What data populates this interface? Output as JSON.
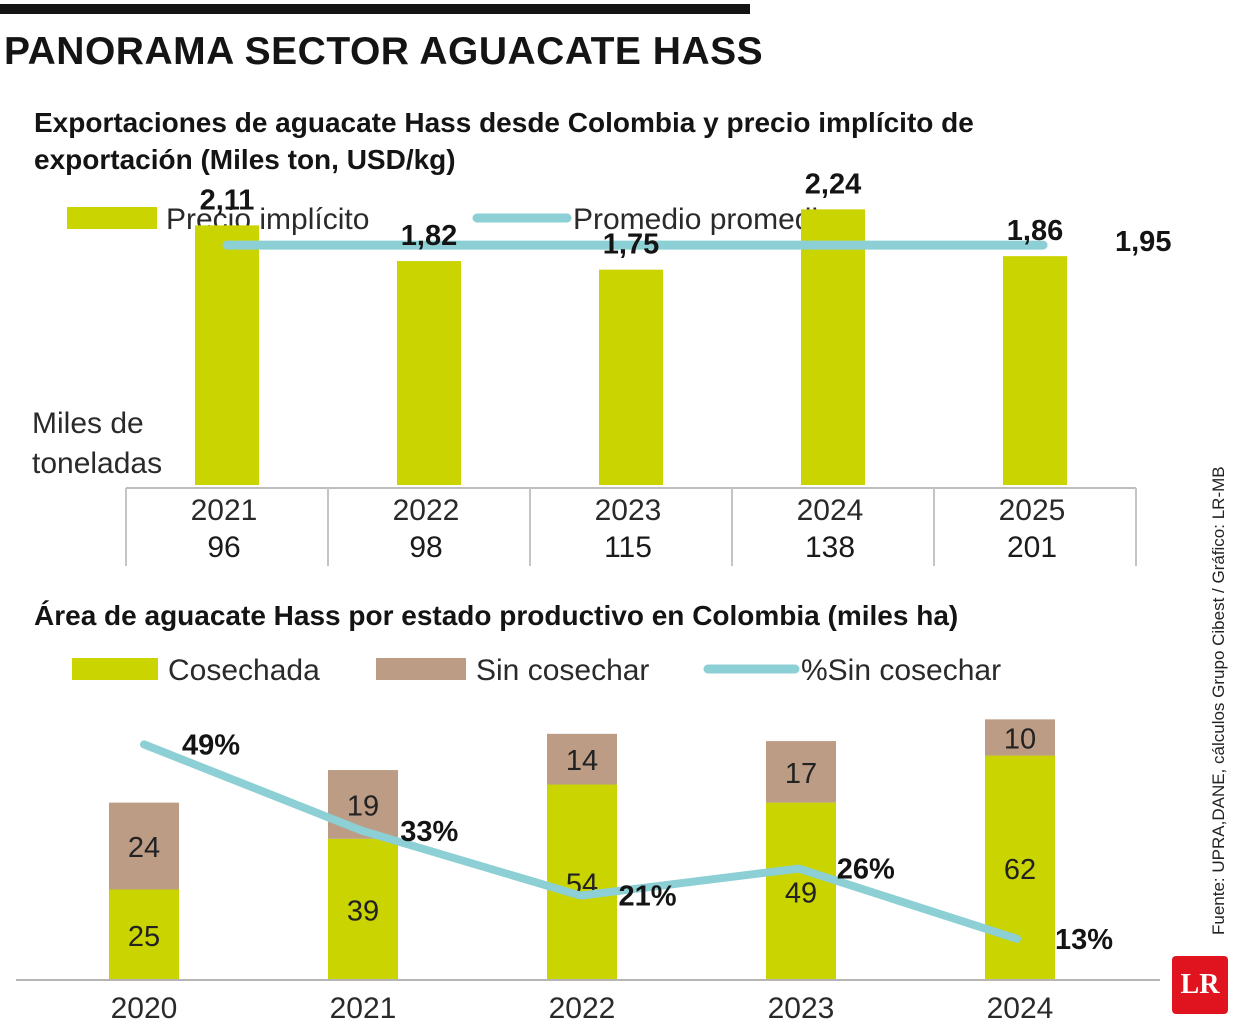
{
  "header": {
    "title": "PANORAMA SECTOR AGUACATE HASS"
  },
  "source": "Fuente: UPRA,DANE, cálculos Grupo Cibest / Gráfico: LR-MB",
  "logo": {
    "text": "LR",
    "color": "#e0141e"
  },
  "colors": {
    "bar": "#c9d400",
    "uncut": "#bc9c85",
    "line": "#8ccfd4"
  },
  "chart_data": [
    {
      "type": "bar",
      "title": "Exportaciones de aguacate Hass desde Colombia y precio implícito de exportación (Miles ton, USD/kg)",
      "legend": [
        "Precio implícito",
        "Promedio promedio"
      ],
      "categories": [
        "2021",
        "2022",
        "2023",
        "2024",
        "2025"
      ],
      "tons_label": "Miles de toneladas",
      "tons": [
        "96",
        "98",
        "115",
        "138",
        "201"
      ],
      "series": [
        {
          "name": "Precio implícito",
          "values": [
            2.11,
            1.82,
            1.75,
            2.24,
            1.86
          ],
          "labels": [
            "2,11",
            "1,82",
            "1,75",
            "2,24",
            "1,86"
          ]
        }
      ],
      "average": {
        "value": 1.95,
        "label": "1,95"
      },
      "ylim": [
        0,
        2.3
      ]
    },
    {
      "type": "bar",
      "stacked": true,
      "title": "Área de aguacate Hass por estado productivo en Colombia (miles ha)",
      "legend": [
        "Cosechada",
        "Sin cosechar",
        "%Sin cosechar"
      ],
      "categories": [
        "2020",
        "2021",
        "2022",
        "2023",
        "2024"
      ],
      "series": [
        {
          "name": "Cosechada",
          "values": [
            25,
            39,
            54,
            49,
            62
          ]
        },
        {
          "name": "Sin cosechar",
          "values": [
            24,
            19,
            14,
            17,
            10
          ]
        }
      ],
      "line": {
        "name": "%Sin cosechar",
        "values": [
          49,
          33,
          21,
          26,
          13
        ],
        "labels": [
          "49%",
          "33%",
          "21%",
          "26%",
          "13%"
        ]
      },
      "ylim": [
        0,
        72
      ]
    }
  ]
}
